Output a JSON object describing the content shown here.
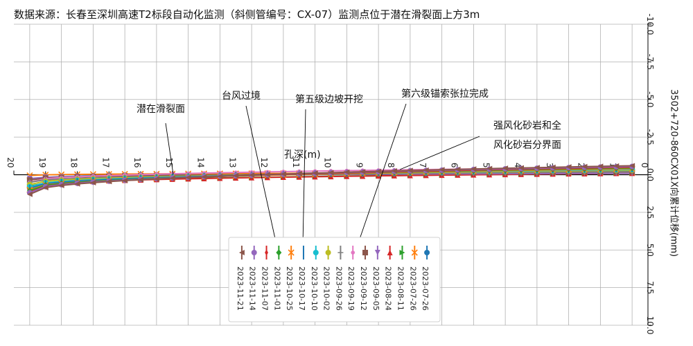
{
  "chart_data": {
    "type": "line",
    "title": "数据来源：长春至深圳高速T2标段自动化监测（斜侧管编号：CX-07）监测点位于潜在滑裂面上方3m",
    "xlabel": "孔深(m)",
    "ylabel": "3502+720-860CX01X向累计位移(mm)",
    "x_ticks": [
      20,
      19,
      18,
      17,
      16,
      15,
      14,
      13,
      12,
      11,
      10,
      9,
      8,
      7,
      6,
      5,
      4,
      3,
      2,
      1,
      0
    ],
    "y_ticks": [
      "-10.0",
      "-7.5",
      "-5.0",
      "-2.5",
      "0.0",
      "2.5",
      "5.0",
      "7.5",
      "10.0"
    ],
    "x_range": [
      20,
      0
    ],
    "y_range": [
      -10,
      10
    ],
    "grid": true,
    "legend_placement": "lower-center",
    "x": [
      19.5,
      19,
      18.5,
      18,
      17.5,
      17,
      16.5,
      16,
      15.5,
      15,
      14.5,
      14,
      13.5,
      13,
      12.5,
      12,
      11.5,
      11,
      10.5,
      10,
      9.5,
      9,
      8.5,
      8,
      7.5,
      7,
      6.5,
      6,
      5.5,
      5,
      4.5,
      4,
      3.5,
      3,
      2.5,
      2,
      1.5,
      1,
      0.5
    ],
    "series": [
      {
        "name": "2023-07-26",
        "color": "#1f77b4",
        "marker": "circle",
        "y_bounds": [
          -0.25,
          0.3
        ]
      },
      {
        "name": "2023-07-26",
        "color": "#ff7f0e",
        "marker": "x",
        "y_bounds": [
          -0.15,
          0.05
        ]
      },
      {
        "name": "2023-08-11",
        "color": "#2ca02c",
        "marker": "triangle-right",
        "y_bounds": [
          -0.1,
          0.75
        ]
      },
      {
        "name": "2023-08-24",
        "color": "#d62728",
        "marker": "triangle-up",
        "y_bounds": [
          -0.1,
          0.8
        ]
      },
      {
        "name": "2023-09-05",
        "color": "#9467bd",
        "marker": "triangle-down",
        "y_bounds": [
          -0.1,
          0.25
        ]
      },
      {
        "name": "2023-09-12",
        "color": "#8c564b",
        "marker": "square",
        "y_bounds": [
          -0.2,
          0.35
        ]
      },
      {
        "name": "2023-09-19",
        "color": "#e377c2",
        "marker": "circle-small",
        "y_bounds": [
          -0.5,
          0.5
        ]
      },
      {
        "name": "2023-09-26",
        "color": "#7f7f7f",
        "marker": "plus",
        "y_bounds": [
          -0.2,
          0.5
        ]
      },
      {
        "name": "2023-10-02",
        "color": "#bcbd22",
        "marker": "circle",
        "y_bounds": [
          -0.3,
          0.65
        ]
      },
      {
        "name": "2023-10-10",
        "color": "#17becf",
        "marker": "circle",
        "y_bounds": [
          -0.35,
          0.8
        ]
      },
      {
        "name": "2023-10-17",
        "color": "#1f77b4",
        "marker": "vline",
        "y_bounds": [
          -0.4,
          0.9
        ]
      },
      {
        "name": "2023-10-25",
        "color": "#ff7f0e",
        "marker": "x",
        "y_bounds": [
          -0.4,
          1.0
        ]
      },
      {
        "name": "2023-11-01",
        "color": "#2ca02c",
        "marker": "diamond",
        "y_bounds": [
          -0.45,
          1.05
        ]
      },
      {
        "name": "2023-11-07",
        "color": "#d62728",
        "marker": "diamond-thin",
        "y_bounds": [
          -0.5,
          1.15
        ]
      },
      {
        "name": "2023-11-14",
        "color": "#9467bd",
        "marker": "ellipse",
        "y_bounds": [
          -0.55,
          1.2
        ]
      },
      {
        "name": "2023-11-21",
        "color": "#8c564b",
        "marker": "triangle-left",
        "y_bounds": [
          -0.6,
          1.3
        ]
      }
    ],
    "annotations": [
      {
        "text": "潜在滑裂面",
        "x": 15
      },
      {
        "text": "台风过境",
        "x": 12
      },
      {
        "text": "第五级边坡开挖",
        "x": 11
      },
      {
        "text": "第六级锚索张拉完成",
        "x": 9
      },
      {
        "text": "强风化砂岩和全",
        "x": 8
      },
      {
        "text": "风化砂岩分界面",
        "x": 8
      }
    ]
  }
}
